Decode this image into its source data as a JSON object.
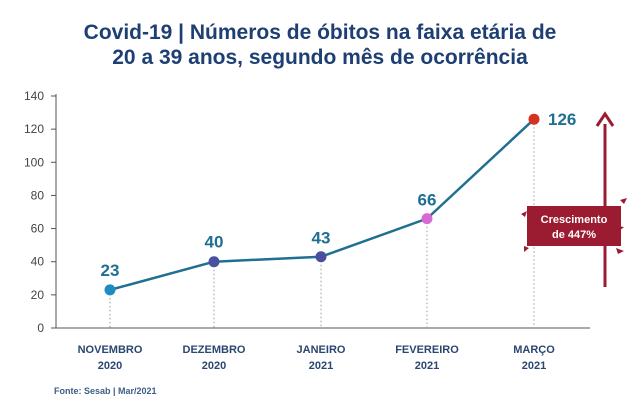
{
  "title_line1": "Covid-19 | Números de óbitos na faixa etária de",
  "title_line2": "20 a 39 anos, segundo mês de ocorrência",
  "source": "Fonte: Sesab | Mar/2021",
  "growth_line1": "Crescimento",
  "growth_line2": "de 447%",
  "colors": {
    "title": "#1d3f73",
    "line": "#1f6f93",
    "arrow": "#9b1b30",
    "badge": "#9b1b30"
  },
  "chart_data": {
    "type": "line",
    "title": "Covid-19 | Números de óbitos na faixa etária de 20 a 39 anos, segundo mês de ocorrência",
    "xlabel": "",
    "ylabel": "",
    "categories": [
      [
        "NOVEMBRO",
        "2020"
      ],
      [
        "DEZEMBRO",
        "2020"
      ],
      [
        "JANEIRO",
        "2021"
      ],
      [
        "FEVEREIRO",
        "2021"
      ],
      [
        "MARÇO",
        "2021"
      ]
    ],
    "values": [
      23,
      40,
      43,
      66,
      126
    ],
    "point_colors": [
      "#1f8bbf",
      "#4a4fa0",
      "#4a4fa0",
      "#d86ad3",
      "#d7321d"
    ],
    "ylim": [
      0,
      140
    ],
    "yticks": [
      0,
      20,
      40,
      60,
      80,
      100,
      120,
      140
    ],
    "grid": false,
    "annotation": "Crescimento de 447%"
  }
}
